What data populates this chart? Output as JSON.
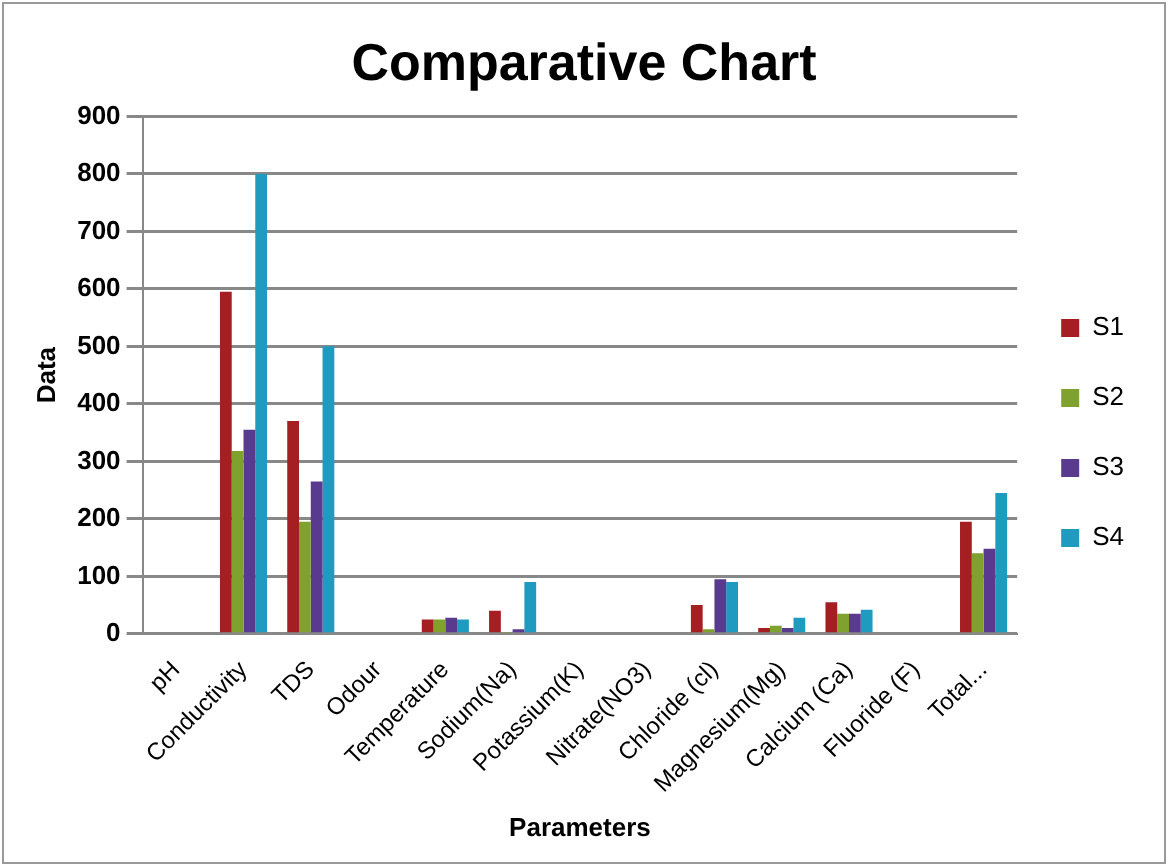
{
  "chart_data": {
    "type": "bar",
    "title": "Comparative Chart",
    "xlabel": "Parameters",
    "ylabel": "Data",
    "categories": [
      "pH",
      "Conductivity",
      "TDS",
      "Odour",
      "Temperature",
      "Sodium(Na)",
      "Potassium(K)",
      "Nitrate(NO3)",
      "Chloride (cl)",
      "Magnesium(Mg)",
      "Calcium (Ca)",
      "Fluoride (F)",
      "Total..."
    ],
    "series": [
      {
        "name": "S1",
        "color": "#a51e22",
        "values": [
          0,
          595,
          370,
          0,
          25,
          40,
          0,
          0,
          50,
          10,
          55,
          0,
          195
        ]
      },
      {
        "name": "S2",
        "color": "#7fa22e",
        "values": [
          0,
          318,
          195,
          0,
          25,
          2,
          0,
          0,
          8,
          14,
          35,
          0,
          140
        ]
      },
      {
        "name": "S3",
        "color": "#5a3a8e",
        "values": [
          0,
          355,
          265,
          0,
          28,
          8,
          0,
          0,
          95,
          10,
          35,
          0,
          148
        ]
      },
      {
        "name": "S4",
        "color": "#1f9bbf",
        "values": [
          0,
          800,
          500,
          0,
          25,
          90,
          0,
          0,
          90,
          28,
          42,
          0,
          245
        ]
      }
    ],
    "ylim": [
      0,
      900
    ],
    "yticks": [
      0,
      100,
      200,
      300,
      400,
      500,
      600,
      700,
      800,
      900
    ],
    "grid": "y",
    "legend": "right"
  }
}
